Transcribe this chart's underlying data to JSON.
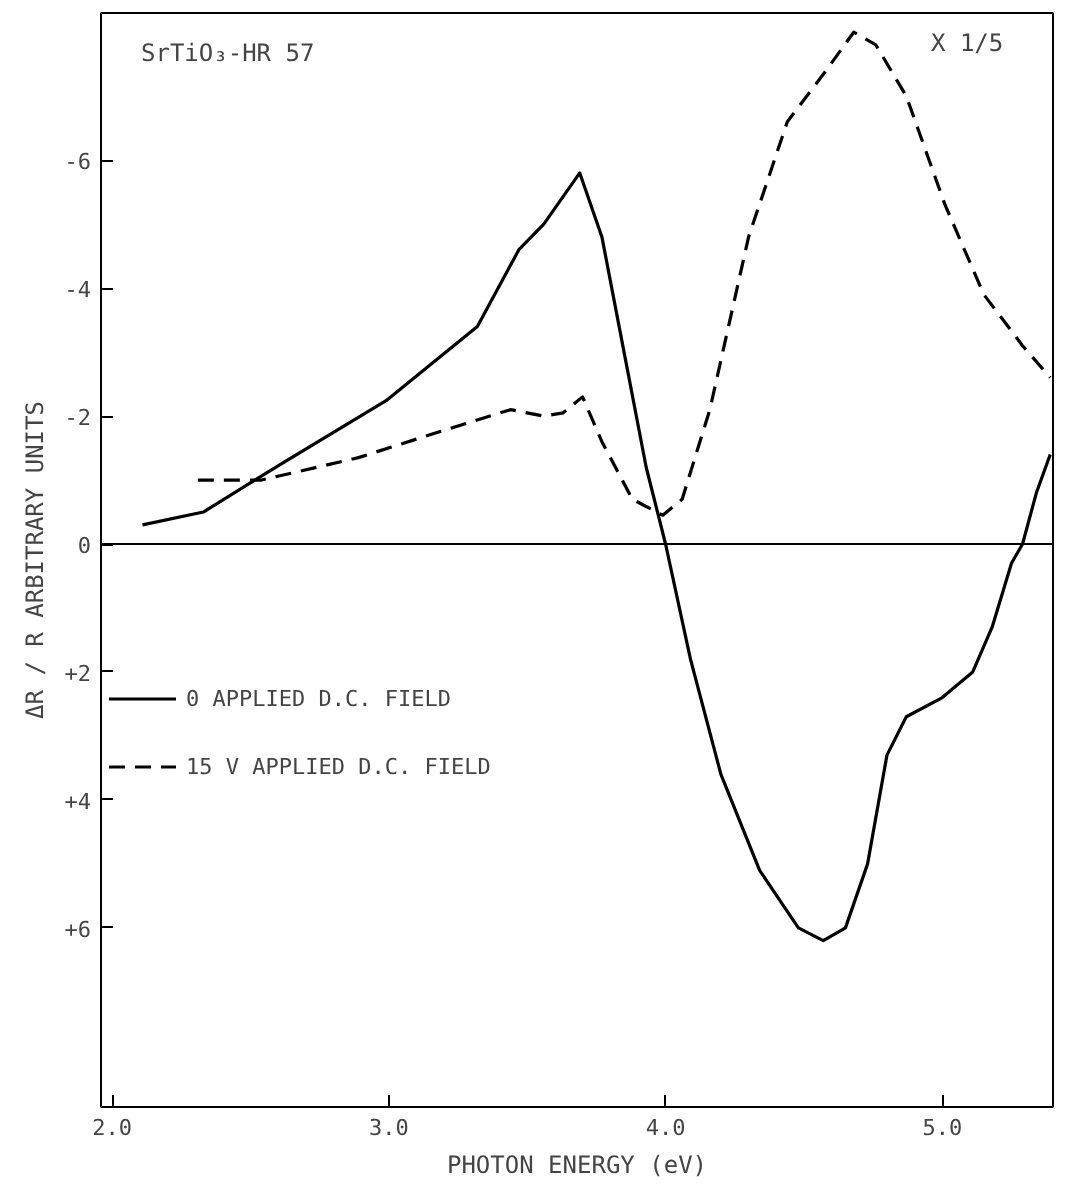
{
  "chart_data": {
    "type": "line",
    "xlabel": "PHOTON ENERGY (eV)",
    "ylabel": "ΔR / R ARBITRARY UNITS",
    "annotations": [
      "SrTiO₃-HR 57",
      "X 1/5"
    ],
    "xlim": [
      1.96,
      5.4
    ],
    "ylim": [
      8.8,
      -8.3
    ],
    "xticks": [
      {
        "value": 2,
        "label": "2.0"
      },
      {
        "value": 3,
        "label": "3.0"
      },
      {
        "value": 4,
        "label": "4.0"
      },
      {
        "value": 5,
        "label": "5.0"
      }
    ],
    "yticks": [
      {
        "value": -6,
        "label": "-6"
      },
      {
        "value": -4,
        "label": "-4"
      },
      {
        "value": -2,
        "label": "-2"
      },
      0,
      {
        "value": 2,
        "label": "+2"
      },
      {
        "value": 4,
        "label": "+4"
      },
      {
        "value": 6,
        "label": "+6"
      }
    ],
    "grid": false,
    "legend": "left",
    "marker": "none",
    "ref_lines": [
      {
        "axis": "y",
        "value": 0,
        "label": null,
        "color": "#000000",
        "line_style": "solid"
      }
    ],
    "series": [
      {
        "name": "0 APPLIED D.C. FIELD",
        "color": "#000000",
        "line_style": "solid",
        "x": [
          2.11,
          2.33,
          2.61,
          2.99,
          3.32,
          3.47,
          3.56,
          3.69,
          3.77,
          3.85,
          3.93,
          4.0,
          4.09,
          4.2,
          4.34,
          4.48,
          4.57,
          4.65,
          4.73,
          4.8,
          4.87,
          5.0,
          5.11,
          5.18,
          5.25,
          5.29,
          5.34,
          5.39
        ],
        "values": [
          -0.3,
          -0.5,
          -1.25,
          -2.24,
          -3.4,
          -4.6,
          -5.0,
          -5.8,
          -4.8,
          -3.0,
          -1.2,
          0,
          1.8,
          3.6,
          5.1,
          6.0,
          6.2,
          6.0,
          5.0,
          3.3,
          2.7,
          2.4,
          2.0,
          1.3,
          0.3,
          0,
          -0.8,
          -1.4
        ]
      },
      {
        "name": "15 V APPLIED D.C. FIELD",
        "color": "#000000",
        "line_style": "dashed",
        "x": [
          2.31,
          2.54,
          2.89,
          3.18,
          3.44,
          3.56,
          3.63,
          3.7,
          3.77,
          3.88,
          3.99,
          4.06,
          4.16,
          4.3,
          4.44,
          4.58,
          4.68,
          4.76,
          4.87,
          5.01,
          5.15,
          5.29,
          5.39
        ],
        "values": [
          -1.0,
          -1.0,
          -1.35,
          -1.75,
          -2.1,
          -2.0,
          -2.05,
          -2.3,
          -1.6,
          -0.7,
          -0.45,
          -0.7,
          -2.1,
          -4.8,
          -6.6,
          -7.4,
          -8.0,
          -7.8,
          -7.0,
          -5.3,
          -3.9,
          -3.1,
          -2.6
        ]
      }
    ]
  }
}
